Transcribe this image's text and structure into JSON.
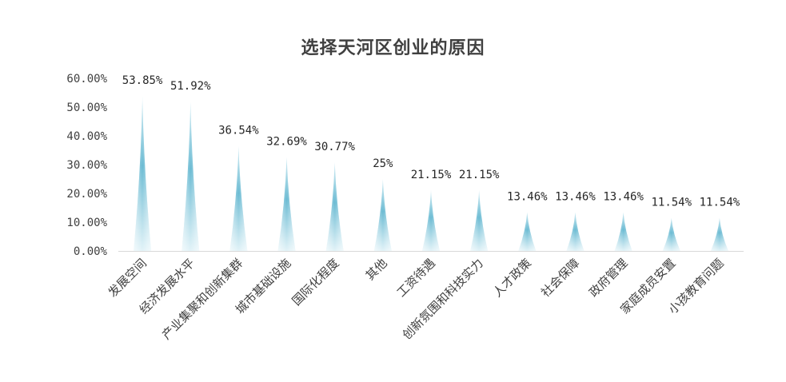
{
  "chart_data": {
    "type": "bar",
    "title": "选择天河区创业的原因",
    "categories": [
      "发展空间",
      "经济发展水平",
      "产业集聚和创新集群",
      "城市基础设施",
      "国际化程度",
      "其他",
      "工资待遇",
      "创新氛围和科技实力",
      "人才政策",
      "社会保障",
      "政府管理",
      "家庭成员安置",
      "小孩教育问题"
    ],
    "values": [
      53.85,
      51.92,
      36.54,
      32.69,
      30.77,
      25,
      21.15,
      21.15,
      13.46,
      13.46,
      13.46,
      11.54,
      11.54
    ],
    "data_labels": [
      "53.85%",
      "51.92%",
      "36.54%",
      "32.69%",
      "30.77%",
      "25%",
      "21.15%",
      "21.15%",
      "13.46%",
      "13.46%",
      "13.46%",
      "11.54%",
      "11.54%"
    ],
    "y_ticks": [
      "0.00%",
      "10.00%",
      "20.00%",
      "30.00%",
      "40.00%",
      "50.00%",
      "60.00%"
    ],
    "ylim": [
      0,
      60
    ],
    "xlabel": "",
    "ylabel": "",
    "grid": false,
    "legend": "none",
    "bar_color": "#7ec4d9"
  }
}
